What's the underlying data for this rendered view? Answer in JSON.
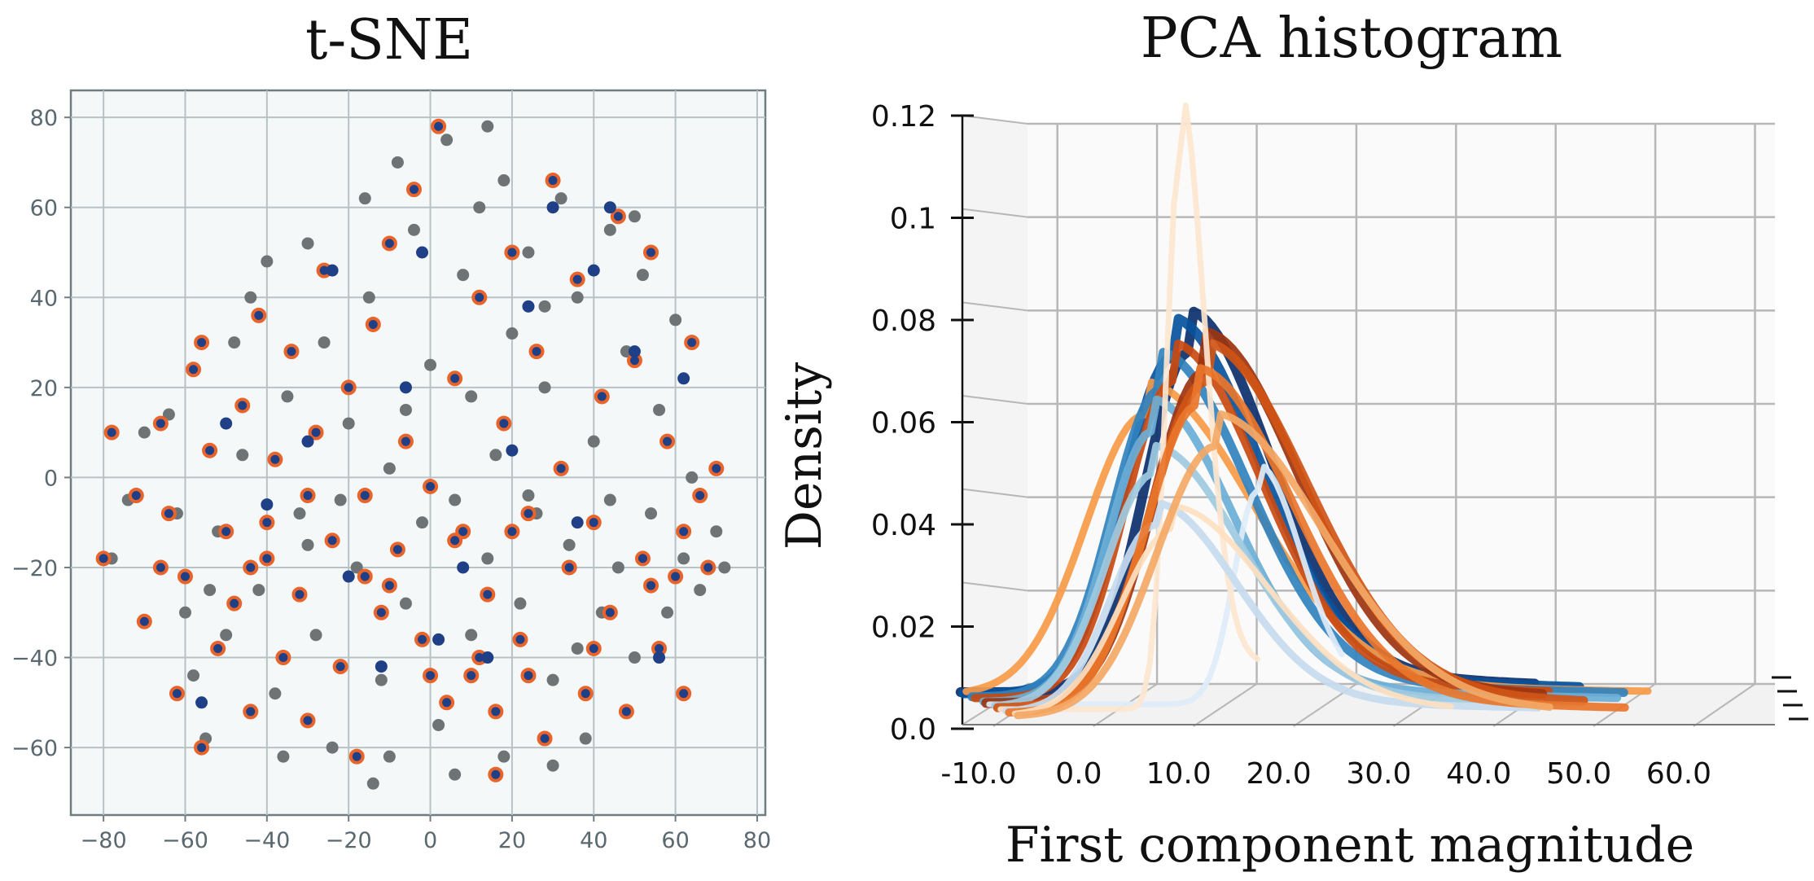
{
  "chart_data": [
    {
      "type": "scatter",
      "title": "t-SNE",
      "xlabel": "",
      "ylabel": "",
      "xlim": [
        -88,
        82
      ],
      "ylim": [
        -75,
        86
      ],
      "xticks": [
        "−80",
        "−60",
        "−40",
        "−20",
        "0",
        "20",
        "40",
        "60",
        "80"
      ],
      "yticks": [
        "−60",
        "−40",
        "−20",
        "0",
        "20",
        "40",
        "60",
        "80"
      ],
      "xtick_values": [
        -80,
        -60,
        -40,
        -20,
        0,
        20,
        40,
        60,
        80
      ],
      "ytick_values": [
        -60,
        -40,
        -20,
        0,
        20,
        40,
        60,
        80
      ],
      "grid": true,
      "background": "#f4f8f9",
      "colors": {
        "gray": "#6e7376",
        "orange": "#e8642a",
        "navy": "#1f3f86",
        "axis": "#6f7d80"
      },
      "series": [
        {
          "role": "gray",
          "points": [
            [
              -74,
              -5
            ],
            [
              -70,
              10
            ],
            [
              -66,
              -20
            ],
            [
              -60,
              -30
            ],
            [
              -58,
              -44
            ],
            [
              -55,
              -58
            ],
            [
              -52,
              -12
            ],
            [
              -48,
              30
            ],
            [
              -46,
              5
            ],
            [
              -42,
              -25
            ],
            [
              -40,
              48
            ],
            [
              -38,
              -48
            ],
            [
              -35,
              18
            ],
            [
              -32,
              -8
            ],
            [
              -30,
              52
            ],
            [
              -28,
              -35
            ],
            [
              -26,
              30
            ],
            [
              -24,
              -60
            ],
            [
              -20,
              12
            ],
            [
              -18,
              -20
            ],
            [
              -15,
              40
            ],
            [
              -12,
              -45
            ],
            [
              -10,
              2
            ],
            [
              -8,
              70
            ],
            [
              -6,
              -28
            ],
            [
              -4,
              55
            ],
            [
              -2,
              -10
            ],
            [
              0,
              25
            ],
            [
              2,
              -55
            ],
            [
              4,
              75
            ],
            [
              6,
              -5
            ],
            [
              8,
              45
            ],
            [
              10,
              -35
            ],
            [
              12,
              60
            ],
            [
              14,
              -18
            ],
            [
              16,
              5
            ],
            [
              18,
              -62
            ],
            [
              20,
              32
            ],
            [
              22,
              -28
            ],
            [
              24,
              50
            ],
            [
              26,
              -8
            ],
            [
              28,
              20
            ],
            [
              30,
              -45
            ],
            [
              32,
              62
            ],
            [
              34,
              -15
            ],
            [
              36,
              40
            ],
            [
              38,
              -58
            ],
            [
              40,
              8
            ],
            [
              42,
              -30
            ],
            [
              44,
              55
            ],
            [
              46,
              -20
            ],
            [
              48,
              28
            ],
            [
              50,
              -40
            ],
            [
              52,
              45
            ],
            [
              54,
              -8
            ],
            [
              56,
              15
            ],
            [
              58,
              -30
            ],
            [
              60,
              35
            ],
            [
              62,
              -18
            ],
            [
              64,
              0
            ],
            [
              66,
              -25
            ],
            [
              70,
              -12
            ],
            [
              72,
              -20
            ],
            [
              -36,
              -62
            ],
            [
              -14,
              -68
            ],
            [
              6,
              -66
            ],
            [
              30,
              -64
            ],
            [
              -78,
              -18
            ],
            [
              -62,
              -8
            ],
            [
              -50,
              -35
            ],
            [
              -44,
              40
            ],
            [
              -22,
              -5
            ],
            [
              -16,
              62
            ],
            [
              14,
              78
            ],
            [
              36,
              -38
            ],
            [
              50,
              58
            ],
            [
              24,
              -4
            ],
            [
              -6,
              15
            ],
            [
              10,
              18
            ],
            [
              -30,
              -15
            ],
            [
              44,
              -5
            ],
            [
              -54,
              -25
            ],
            [
              -64,
              14
            ],
            [
              28,
              38
            ],
            [
              -10,
              -62
            ],
            [
              18,
              66
            ]
          ]
        },
        {
          "role": "orange",
          "points": [
            [
              -80,
              -18
            ],
            [
              -78,
              10
            ],
            [
              -72,
              -4
            ],
            [
              -70,
              -32
            ],
            [
              -66,
              12
            ],
            [
              -64,
              -8
            ],
            [
              -62,
              -48
            ],
            [
              -60,
              -22
            ],
            [
              -58,
              24
            ],
            [
              -56,
              -60
            ],
            [
              -54,
              6
            ],
            [
              -52,
              -38
            ],
            [
              -50,
              -12
            ],
            [
              -48,
              -28
            ],
            [
              -46,
              16
            ],
            [
              -44,
              -52
            ],
            [
              -42,
              36
            ],
            [
              -40,
              -18
            ],
            [
              -38,
              4
            ],
            [
              -36,
              -40
            ],
            [
              -34,
              28
            ],
            [
              -32,
              -26
            ],
            [
              -30,
              -54
            ],
            [
              -28,
              10
            ],
            [
              -26,
              46
            ],
            [
              -24,
              -14
            ],
            [
              -22,
              -42
            ],
            [
              -20,
              20
            ],
            [
              -18,
              -62
            ],
            [
              -16,
              -4
            ],
            [
              -14,
              34
            ],
            [
              -12,
              -30
            ],
            [
              -10,
              52
            ],
            [
              -8,
              -16
            ],
            [
              -6,
              8
            ],
            [
              -4,
              64
            ],
            [
              -2,
              -36
            ],
            [
              0,
              -2
            ],
            [
              2,
              78
            ],
            [
              4,
              -50
            ],
            [
              6,
              22
            ],
            [
              8,
              -12
            ],
            [
              10,
              -44
            ],
            [
              12,
              40
            ],
            [
              14,
              -26
            ],
            [
              16,
              -66
            ],
            [
              18,
              12
            ],
            [
              20,
              50
            ],
            [
              22,
              -36
            ],
            [
              24,
              -8
            ],
            [
              26,
              28
            ],
            [
              28,
              -58
            ],
            [
              30,
              66
            ],
            [
              32,
              2
            ],
            [
              34,
              -20
            ],
            [
              36,
              44
            ],
            [
              38,
              -48
            ],
            [
              40,
              -10
            ],
            [
              42,
              18
            ],
            [
              44,
              -30
            ],
            [
              46,
              58
            ],
            [
              48,
              -52
            ],
            [
              50,
              26
            ],
            [
              52,
              -18
            ],
            [
              54,
              50
            ],
            [
              56,
              -38
            ],
            [
              58,
              8
            ],
            [
              60,
              -22
            ],
            [
              62,
              -48
            ],
            [
              64,
              30
            ],
            [
              66,
              -4
            ],
            [
              68,
              -20
            ],
            [
              70,
              2
            ],
            [
              -66,
              -20
            ],
            [
              -56,
              30
            ],
            [
              -44,
              -20
            ],
            [
              -30,
              -4
            ],
            [
              -16,
              -22
            ],
            [
              0,
              -44
            ],
            [
              12,
              -40
            ],
            [
              16,
              -52
            ],
            [
              24,
              -44
            ],
            [
              40,
              -38
            ],
            [
              54,
              -24
            ],
            [
              62,
              -12
            ],
            [
              -40,
              -10
            ],
            [
              -10,
              -24
            ],
            [
              6,
              -14
            ],
            [
              20,
              -12
            ]
          ]
        },
        {
          "role": "navy",
          "points": [
            [
              -56,
              -50
            ],
            [
              -50,
              12
            ],
            [
              -40,
              -6
            ],
            [
              -30,
              8
            ],
            [
              -24,
              46
            ],
            [
              -20,
              -22
            ],
            [
              -12,
              -42
            ],
            [
              -6,
              20
            ],
            [
              -2,
              50
            ],
            [
              2,
              -36
            ],
            [
              8,
              -20
            ],
            [
              14,
              -40
            ],
            [
              20,
              6
            ],
            [
              24,
              38
            ],
            [
              30,
              60
            ],
            [
              36,
              -10
            ],
            [
              40,
              46
            ],
            [
              44,
              60
            ],
            [
              50,
              28
            ],
            [
              56,
              -40
            ],
            [
              62,
              22
            ]
          ]
        }
      ]
    },
    {
      "type": "line",
      "title": "PCA histogram",
      "xlabel": "First component magnitude",
      "ylabel": "Density",
      "xlim": [
        -15,
        62
      ],
      "ylim": [
        0,
        0.12
      ],
      "xticks": [
        "-10.0",
        "0.0",
        "10.0",
        "20.0",
        "30.0",
        "40.0",
        "50.0",
        "60.0"
      ],
      "xtick_values": [
        -10,
        0,
        10,
        20,
        30,
        40,
        50,
        60
      ],
      "yticks": [
        "0.0",
        "0.02",
        "0.04",
        "0.06",
        "0.08",
        "0.1",
        "0.12"
      ],
      "ytick_values": [
        0,
        0.02,
        0.04,
        0.06,
        0.08,
        0.1,
        0.12
      ],
      "projection": "3d",
      "grid": true,
      "colors": {
        "pane": "#fafafa",
        "grid": "#b7b7b7"
      },
      "series": [
        {
          "color": "#f3a865",
          "mu": 6,
          "sigma": 8,
          "tail": 40,
          "peak": 0.058,
          "depth": 0.0,
          "width": 9
        },
        {
          "color": "#e9762b",
          "mu": 5,
          "sigma": 7,
          "tail": 48,
          "peak": 0.066,
          "depth": 0.15,
          "width": 10
        },
        {
          "color": "#d05415",
          "mu": 7,
          "sigma": 7.5,
          "tail": 45,
          "peak": 0.07,
          "depth": 0.35,
          "width": 11
        },
        {
          "color": "#9c3410",
          "mu": 8,
          "sigma": 7,
          "tail": 42,
          "peak": 0.071,
          "depth": 0.55,
          "width": 12
        },
        {
          "color": "#c94a10",
          "mu": 6,
          "sigma": 6.5,
          "tail": 44,
          "peak": 0.068,
          "depth": 0.75,
          "width": 10
        },
        {
          "color": "#f79a48",
          "mu": 4,
          "sigma": 8,
          "tail": 55,
          "peak": 0.06,
          "depth": 0.9,
          "width": 9
        },
        {
          "color": "#fde0c0",
          "mu": 2,
          "sigma": 7,
          "tail": 30,
          "peak": 0.04,
          "depth": 0.05,
          "width": 7
        },
        {
          "color": "#c6dbef",
          "mu": 1,
          "sigma": 6,
          "tail": 40,
          "peak": 0.04,
          "depth": 0.2,
          "width": 9
        },
        {
          "color": "#9ecae1",
          "mu": 2,
          "sigma": 6.5,
          "tail": 45,
          "peak": 0.05,
          "depth": 0.4,
          "width": 9
        },
        {
          "color": "#6baed6",
          "mu": 3,
          "sigma": 6,
          "tail": 50,
          "peak": 0.058,
          "depth": 0.6,
          "width": 10
        },
        {
          "color": "#3182bd",
          "mu": 5,
          "sigma": 6.5,
          "tail": 52,
          "peak": 0.066,
          "depth": 0.8,
          "width": 11
        },
        {
          "color": "#08519c",
          "mu": 7,
          "sigma": 6.5,
          "tail": 48,
          "peak": 0.072,
          "depth": 0.95,
          "width": 12
        },
        {
          "color": "#0b2f6b",
          "mu": 9,
          "sigma": 6,
          "tail": 44,
          "peak": 0.073,
          "depth": 1.0,
          "width": 12
        },
        {
          "color": "#fde6cf",
          "mu": 4,
          "sigma": 1.8,
          "tail": 12,
          "peak": 0.119,
          "depth": 0.3,
          "width": 7
        },
        {
          "color": "#deebf7",
          "mu": 13,
          "sigma": 3.2,
          "tail": 22,
          "peak": 0.046,
          "depth": 0.5,
          "width": 7
        }
      ]
    }
  ]
}
